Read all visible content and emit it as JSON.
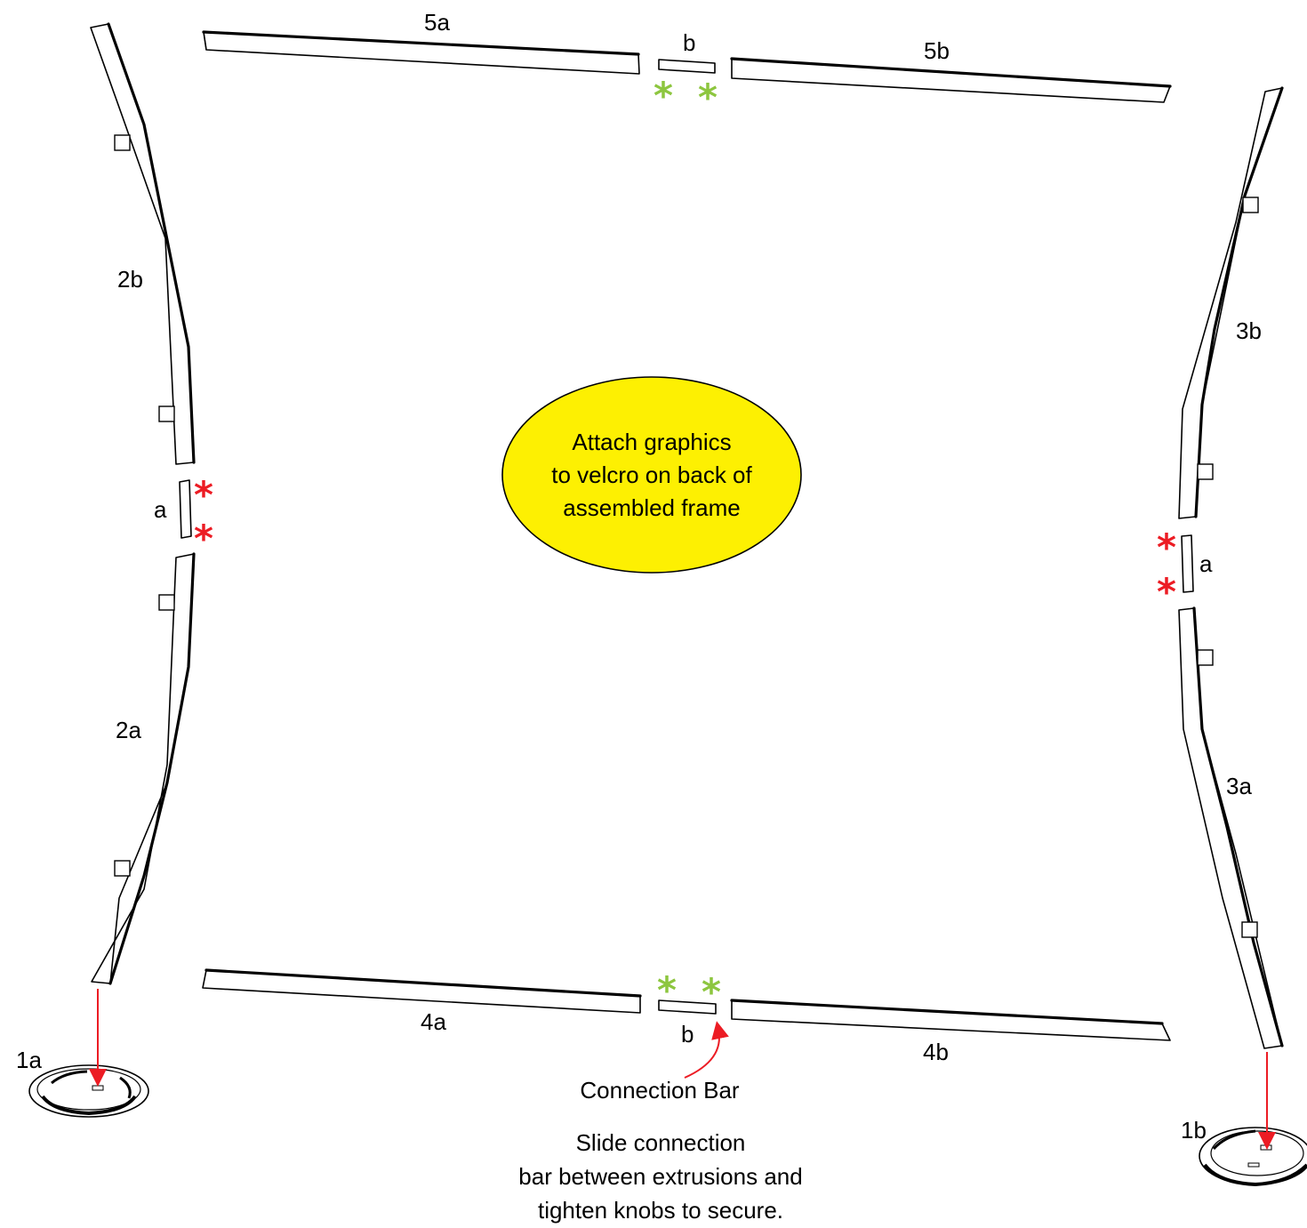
{
  "callout": {
    "lines": [
      "Attach graphics",
      "to velcro on back of",
      "assembled frame"
    ],
    "fill_color": "#fdf002"
  },
  "labels": {
    "top_left_extrusion": "5a",
    "top_connector": "b",
    "top_right_extrusion": "5b",
    "left_upper_extrusion": "2b",
    "left_connector": "a",
    "left_lower_extrusion": "2a",
    "right_upper_extrusion": "3b",
    "right_connector": "a",
    "right_lower_extrusion": "3a",
    "bottom_left_extrusion": "4a",
    "bottom_connector": "b",
    "bottom_right_extrusion": "4b",
    "base_left": "1a",
    "base_right": "1b"
  },
  "connection_bar_label": "Connection Bar",
  "instructions": {
    "lines": [
      "Slide connection",
      "bar between extrusions and",
      "tighten knobs to secure."
    ]
  },
  "markers": {
    "symbol": "*",
    "red_color": "#ec1c24",
    "green_color": "#8dc63f"
  },
  "arrow_color": "#ec1c24"
}
